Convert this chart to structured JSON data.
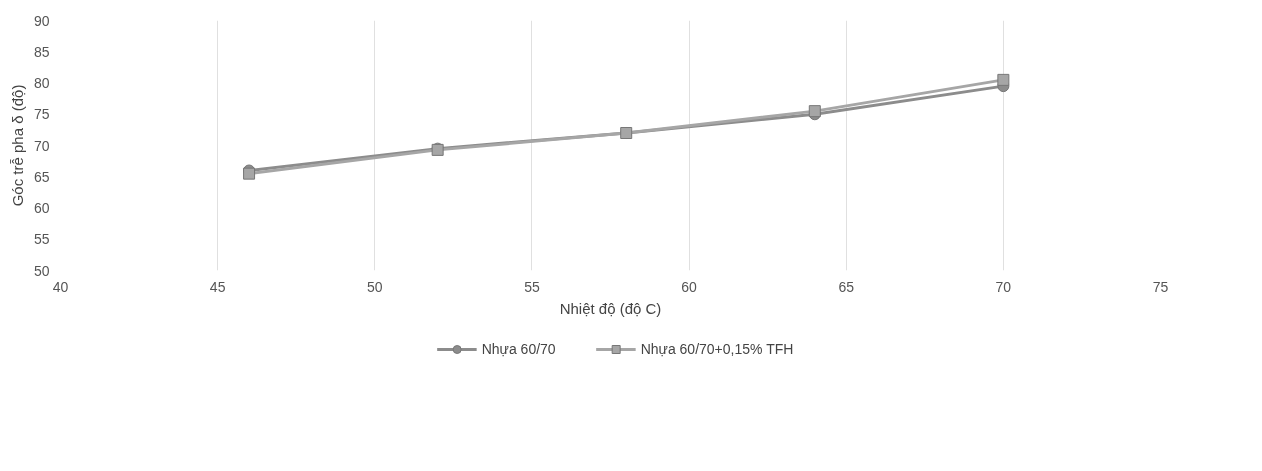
{
  "chart_data": {
    "type": "line",
    "xlabel": "Nhiệt độ (độ C)",
    "ylabel": "Góc trễ pha δ (độ)",
    "x": [
      46,
      52,
      58,
      64,
      70
    ],
    "series": [
      {
        "name": "Nhựa 60/70",
        "color": "#8c8c8c",
        "marker": "circle",
        "values": [
          66,
          69.5,
          72,
          75,
          79.5
        ]
      },
      {
        "name": "Nhựa 60/70+0,15% TFH",
        "color": "#a6a6a6",
        "marker": "square",
        "values": [
          65.5,
          69.3,
          72,
          75.5,
          80.5
        ]
      }
    ],
    "xlim": [
      40,
      75
    ],
    "xticks": [
      40,
      45,
      50,
      55,
      60,
      65,
      70,
      75
    ],
    "ylim": [
      50,
      90
    ],
    "yticks": [
      50,
      55,
      60,
      65,
      70,
      75,
      80,
      85,
      90
    ],
    "grid": "x",
    "legend": "bottom",
    "line_style": "solid"
  }
}
